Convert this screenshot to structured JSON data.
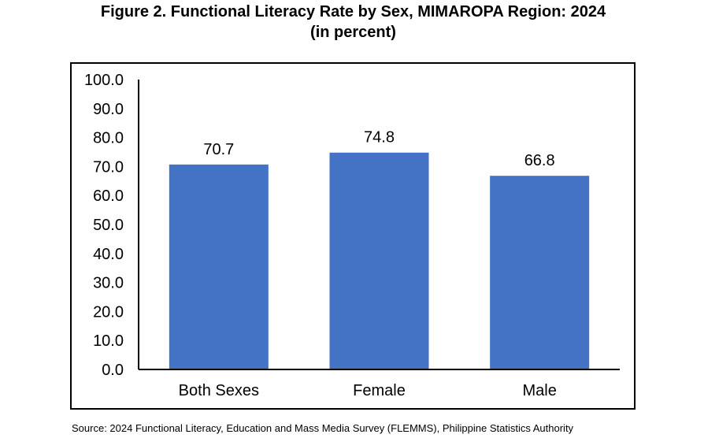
{
  "title": {
    "line1": "Figure 2. Functional Literacy Rate by Sex, MIMAROPA Region: 2024",
    "line2": "(in percent)"
  },
  "source": "Source: 2024 Functional Literacy, Education and Mass Media Survey (FLEMMS), Philippine Statistics Authority",
  "colors": {
    "bar": "#4472C4",
    "axis": "#000000",
    "frame": "#000000"
  },
  "chart_data": {
    "type": "bar",
    "categories": [
      "Both Sexes",
      "Female",
      "Male"
    ],
    "values": [
      70.7,
      74.8,
      66.8
    ],
    "value_labels": [
      "70.7",
      "74.8",
      "66.8"
    ],
    "y_ticks": [
      "0.0",
      "10.0",
      "20.0",
      "30.0",
      "40.0",
      "50.0",
      "60.0",
      "70.0",
      "80.0",
      "90.0",
      "100.0"
    ],
    "ylim": [
      0,
      100
    ],
    "xlabel": "",
    "ylabel": "",
    "grid": false,
    "legend": "none"
  }
}
